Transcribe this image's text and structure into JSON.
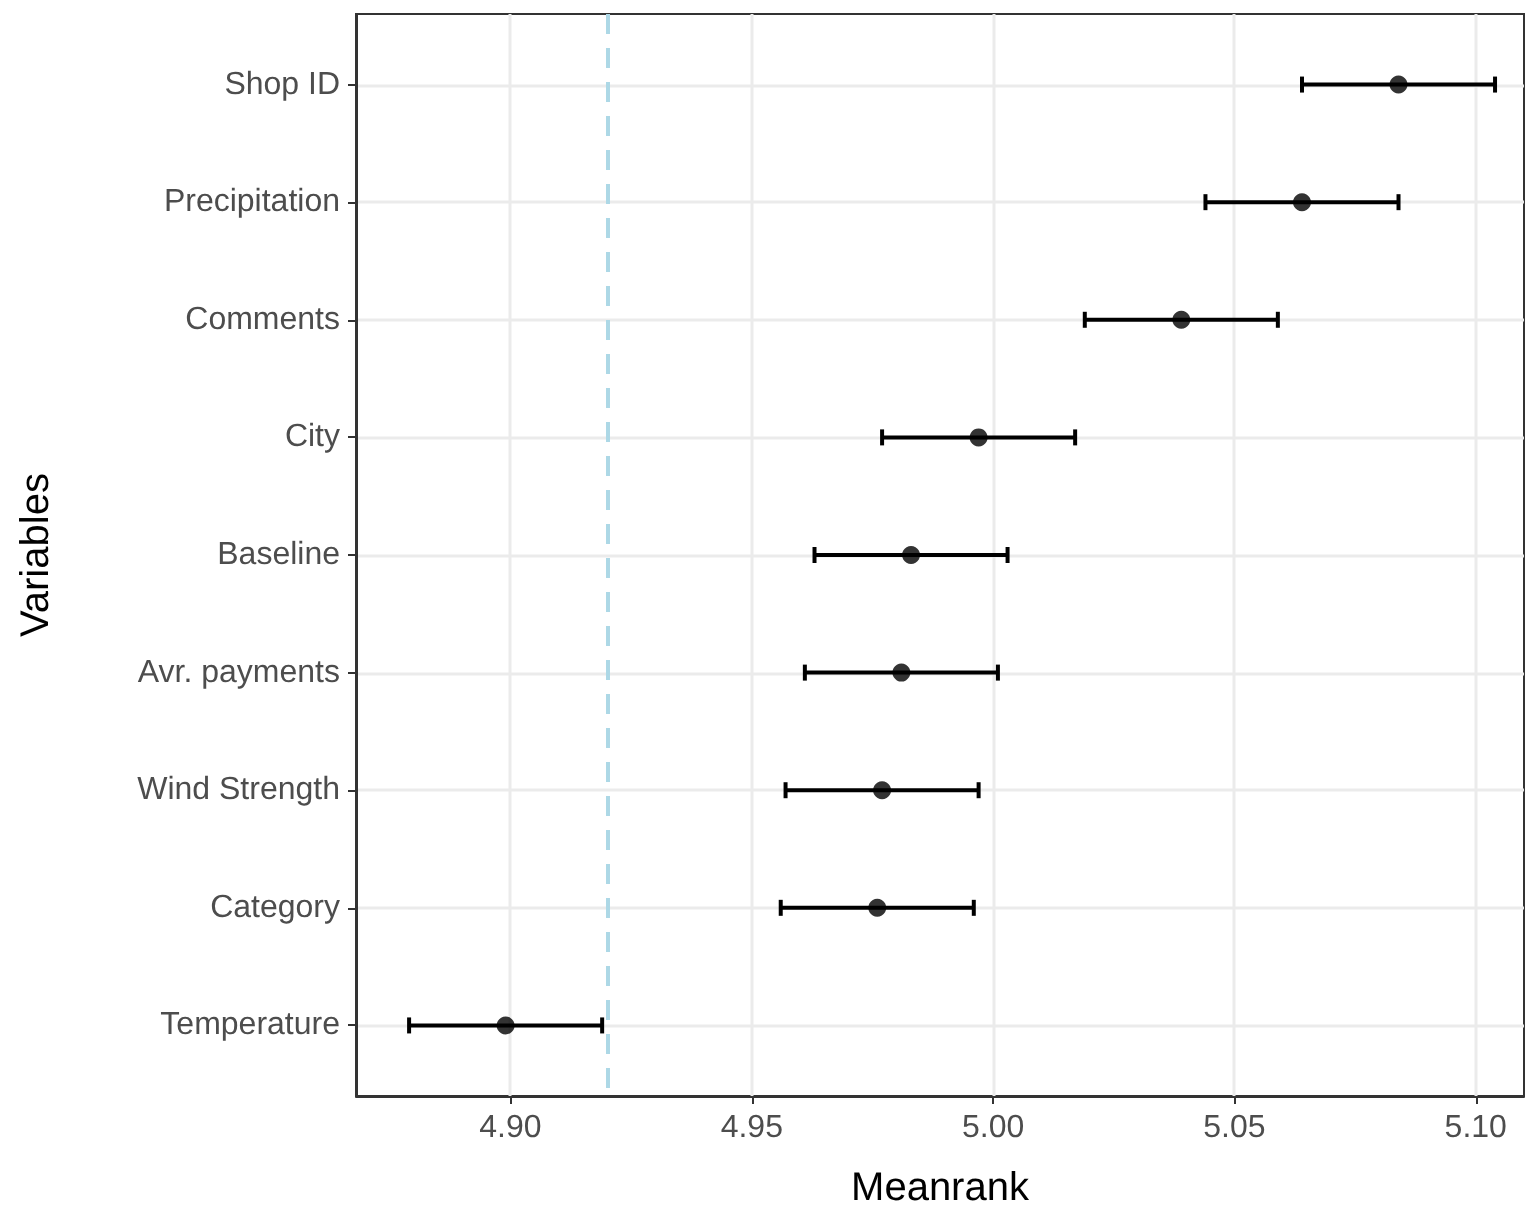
{
  "chart_data": {
    "type": "scatter",
    "orientation": "horizontal",
    "xlabel": "Meanrank",
    "ylabel": "Variables",
    "categories": [
      "Shop ID",
      "Precipitation",
      "Comments",
      "City",
      "Baseline",
      "Avr. payments",
      "Wind Strength",
      "Category",
      "Temperature"
    ],
    "values": [
      5.084,
      5.064,
      5.039,
      4.997,
      4.983,
      4.981,
      4.977,
      4.976,
      4.899
    ],
    "errors": [
      0.02,
      0.02,
      0.02,
      0.02,
      0.02,
      0.02,
      0.02,
      0.02,
      0.02
    ],
    "color": "#000000",
    "xlim": [
      4.868,
      5.11
    ],
    "xticks": [
      {
        "value": 4.9,
        "label": "4.90"
      },
      {
        "value": 4.95,
        "label": "4.95"
      },
      {
        "value": 5.0,
        "label": "5.00"
      },
      {
        "value": 5.05,
        "label": "5.05"
      },
      {
        "value": 5.1,
        "label": "5.10"
      }
    ],
    "ref_lines": [
      {
        "axis": "x",
        "value": 4.92,
        "label": null,
        "color": "#add8e6",
        "line_style": "dashed"
      }
    ],
    "grid": true,
    "marker": "circle"
  }
}
